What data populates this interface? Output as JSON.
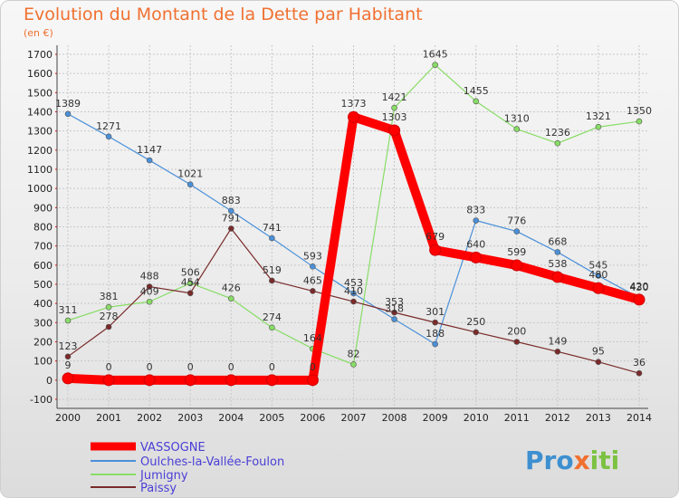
{
  "chart_data": {
    "type": "line",
    "title": "Evolution du Montant de la Dette par Habitant",
    "subtitle": "(en €)",
    "xlabel": "",
    "ylabel": "",
    "x": [
      "2000",
      "2001",
      "2002",
      "2003",
      "2004",
      "2005",
      "2006",
      "2007",
      "2008",
      "2009",
      "2010",
      "2011",
      "2012",
      "2013",
      "2014"
    ],
    "ylim": [
      -100,
      1700
    ],
    "yticks": [
      -100,
      0,
      100,
      200,
      300,
      400,
      500,
      600,
      700,
      800,
      900,
      1000,
      1100,
      1200,
      1300,
      1400,
      1500,
      1600,
      1700
    ],
    "grid": true,
    "legend": "bottom-left",
    "series": [
      {
        "name": "VASSOGNE",
        "color": "#ff0000",
        "values": [
          9,
          0,
          0,
          0,
          0,
          0,
          0,
          1373,
          1303,
          679,
          640,
          599,
          538,
          480,
          420
        ]
      },
      {
        "name": "Oulches-la-Vallée-Foulon",
        "color": "#4a90d9",
        "values": [
          1389,
          1271,
          1147,
          1021,
          883,
          741,
          593,
          453,
          318,
          188,
          833,
          776,
          668,
          545,
          430
        ]
      },
      {
        "name": "Jumigny",
        "color": "#88dd66",
        "values": [
          311,
          381,
          409,
          506,
          426,
          274,
          164,
          82,
          1421,
          1645,
          1455,
          1310,
          1236,
          1321,
          1350
        ]
      },
      {
        "name": "Paissy",
        "color": "#7a2a2a",
        "values": [
          123,
          278,
          488,
          454,
          791,
          519,
          465,
          410,
          353,
          301,
          250,
          200,
          149,
          95,
          36
        ]
      }
    ]
  },
  "logo": "Proxiti"
}
